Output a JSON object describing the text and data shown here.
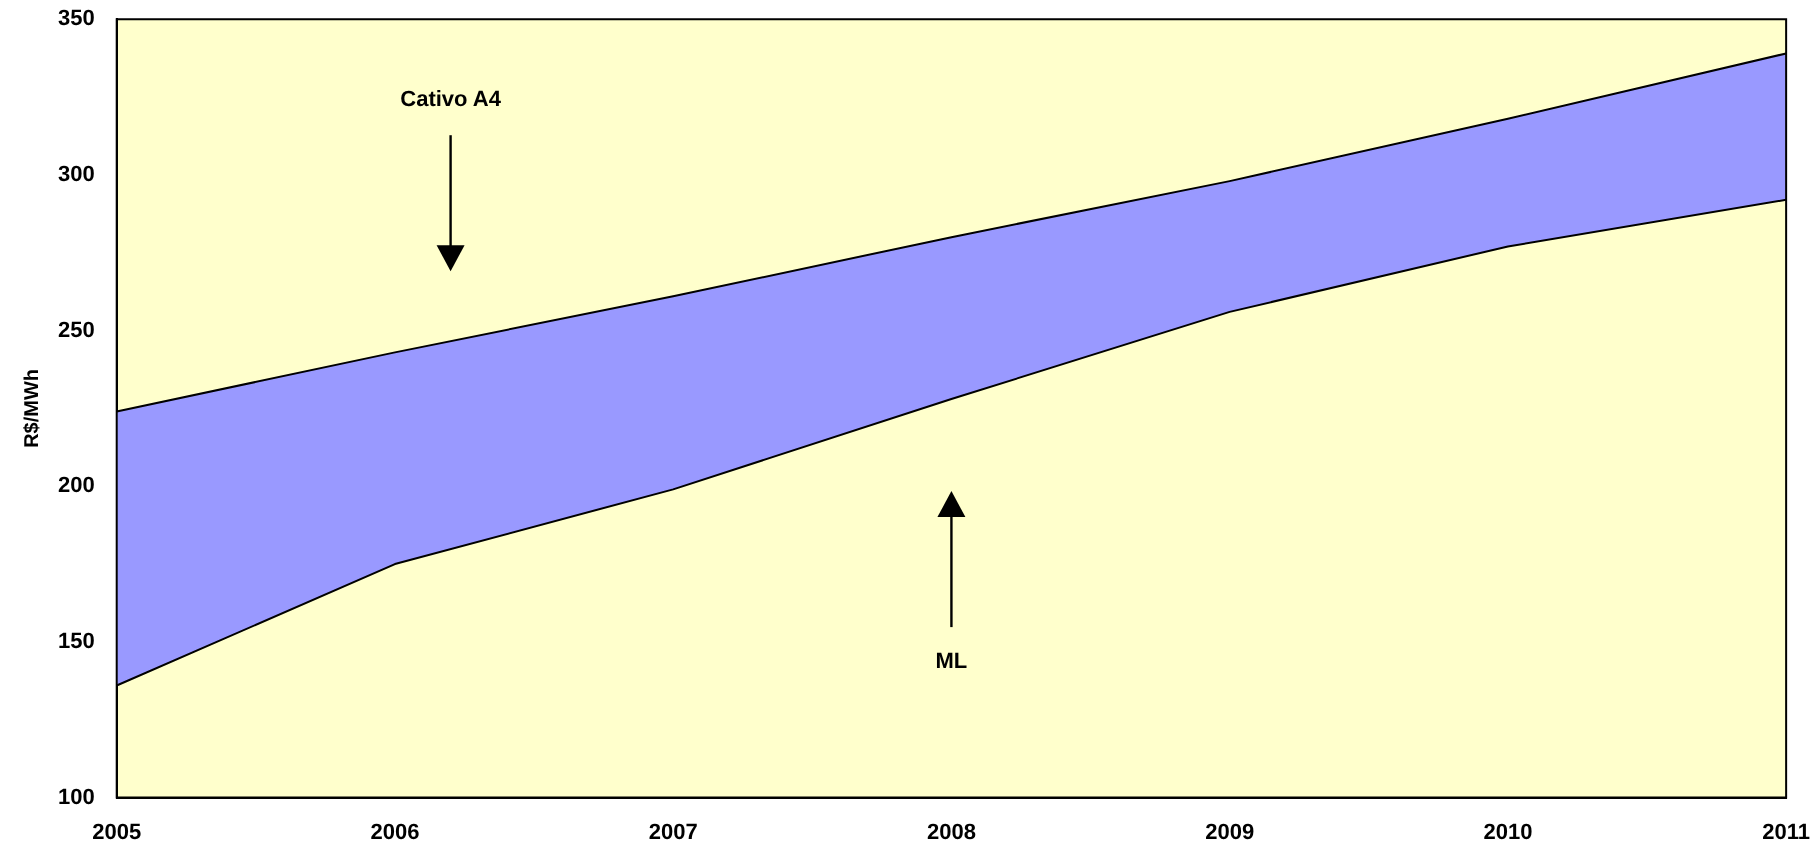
{
  "chart_data": {
    "type": "line",
    "ylabel": "R$/MWh",
    "x": [
      2005,
      2006,
      2007,
      2008,
      2009,
      2010,
      2011
    ],
    "series": [
      {
        "type": "line",
        "color": "#000000",
        "values": [
          136,
          175,
          199,
          228,
          256,
          277,
          292
        ]
      },
      {
        "type": "area",
        "color": "#9999ff",
        "values": [
          224,
          243,
          261,
          280,
          298,
          318,
          339
        ]
      }
    ],
    "xlim": [
      2005,
      2011
    ],
    "xticks": [
      2005,
      2006,
      2007,
      2008,
      2009,
      2010,
      2011
    ],
    "ylim": [
      100,
      350
    ],
    "yticks": [
      100,
      150,
      200,
      250,
      300,
      350
    ],
    "grid": false,
    "legend": false,
    "marker": "none",
    "line_style": "solid",
    "annotations": [
      "Cativo A4",
      "ML"
    ]
  }
}
